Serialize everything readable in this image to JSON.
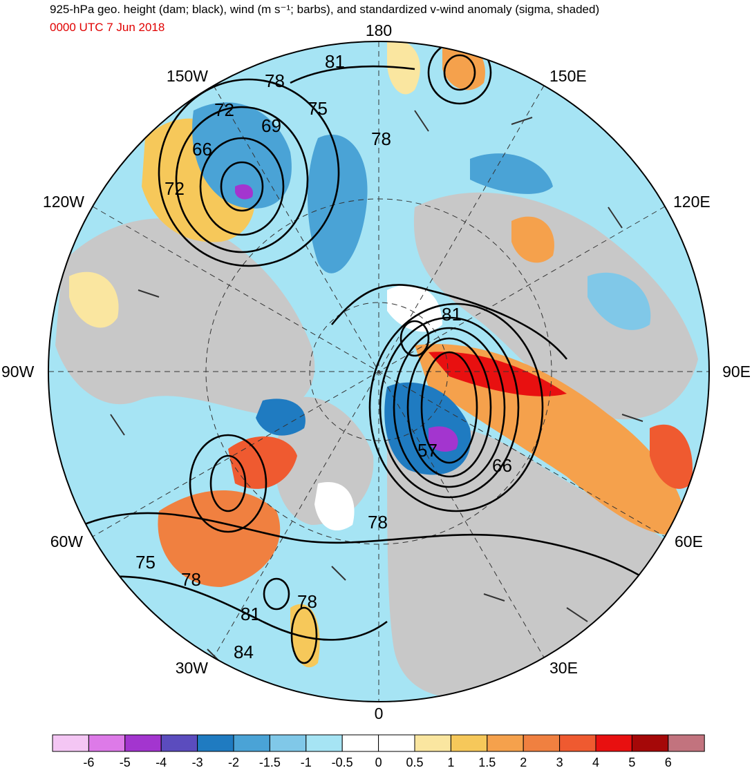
{
  "header": {
    "title": "925-hPa geo. height (dam; black), wind (m s⁻¹; barbs), and standardized v-wind anomaly (sigma, shaded)",
    "valid_time": "0000 UTC 7 Jun 2018"
  },
  "map": {
    "projection": "north polar stereographic",
    "longitude_labels": [
      {
        "label": "180",
        "lon": 180
      },
      {
        "label": "150E",
        "lon": 150
      },
      {
        "label": "120E",
        "lon": 120
      },
      {
        "label": "90E",
        "lon": 90
      },
      {
        "label": "60E",
        "lon": 60
      },
      {
        "label": "30E",
        "lon": 30
      },
      {
        "label": "0",
        "lon": 0
      },
      {
        "label": "30W",
        "lon": -30
      },
      {
        "label": "60W",
        "lon": -60
      },
      {
        "label": "90W",
        "lon": -90
      },
      {
        "label": "120W",
        "lon": -120
      },
      {
        "label": "150W",
        "lon": -150
      }
    ],
    "height_contour_labels": [
      "81",
      "78",
      "75",
      "72",
      "69",
      "66",
      "72",
      "78",
      "81",
      "57",
      "66",
      "78",
      "75",
      "78",
      "78",
      "81",
      "84"
    ],
    "colors": {
      "land": "#c8c8c8",
      "contour": "#000000",
      "negative_strong": "#1f7bc1",
      "negative_weak": "#a6e4f4",
      "positive_weak": "#fae6a0",
      "positive_strong": "#e81010"
    }
  },
  "colorbar": {
    "bins": [
      {
        "color": "#f4c6f4"
      },
      {
        "color": "#dd7ae8"
      },
      {
        "color": "#a335cf"
      },
      {
        "color": "#5b4cbe"
      },
      {
        "color": "#1f7bc1"
      },
      {
        "color": "#4aa3d6"
      },
      {
        "color": "#80c8e8"
      },
      {
        "color": "#a6e4f4"
      },
      {
        "color": "#ffffff"
      },
      {
        "color": "#ffffff"
      },
      {
        "color": "#fae6a0"
      },
      {
        "color": "#f6c85a"
      },
      {
        "color": "#f5a14c"
      },
      {
        "color": "#f08040"
      },
      {
        "color": "#ef5a30"
      },
      {
        "color": "#e81010"
      },
      {
        "color": "#a50808"
      },
      {
        "color": "#c2737e"
      }
    ],
    "tick_labels": [
      "-6",
      "-5",
      "-4",
      "-3",
      "-2",
      "-1.5",
      "-1",
      "-0.5",
      "0",
      "0.5",
      "1",
      "1.5",
      "2",
      "3",
      "4",
      "5",
      "6"
    ]
  }
}
